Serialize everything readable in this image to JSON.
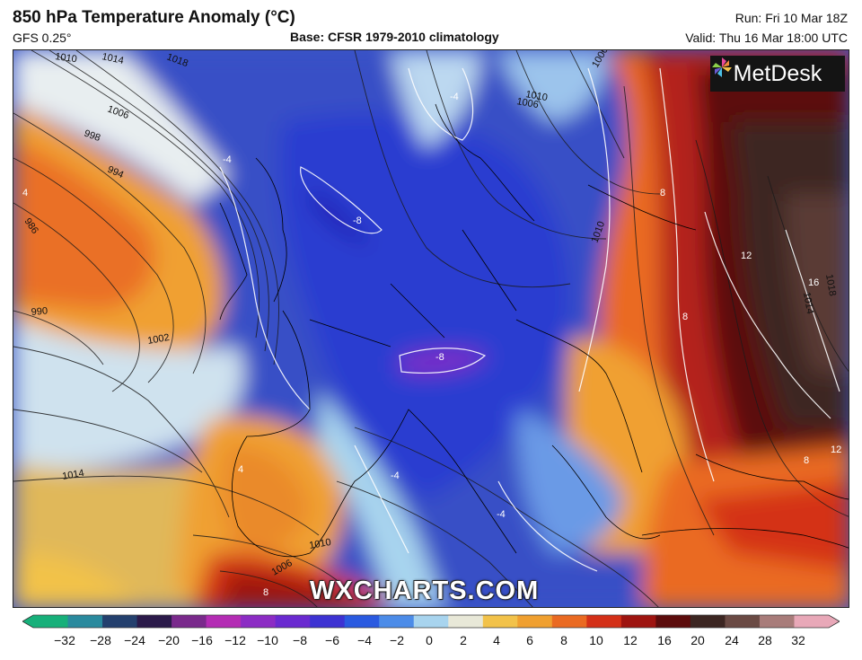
{
  "header": {
    "title": "850 hPa Temperature Anomaly (°C)",
    "model": "GFS 0.25°",
    "base": "Base: CFSR 1979-2010 climatology",
    "run": "Run: Fri 10 Mar 18Z",
    "valid": "Valid: Thu 16 Mar 18:00 UTC"
  },
  "brand": {
    "name": "MetDesk",
    "icon": "pinwheel-logo-icon"
  },
  "watermark": "WXCHARTS.COM",
  "map": {
    "isobar_labels": [
      "1010",
      "1014",
      "1018",
      "1006",
      "998",
      "994",
      "986",
      "990",
      "1002",
      "1014",
      "1010",
      "1006",
      "1018",
      "1014",
      "1006",
      "1010",
      "1006",
      "1010"
    ],
    "anomaly_labels": [
      "-4",
      "-4",
      "-8",
      "-8",
      "-4",
      "-4",
      "4",
      "8",
      "8",
      "12",
      "16",
      "12",
      "8",
      "4",
      "8"
    ]
  },
  "colorbar": {
    "ticks": [
      "−32",
      "−28",
      "−24",
      "−20",
      "−16",
      "−12",
      "−10",
      "−8",
      "−6",
      "−4",
      "−2",
      "0",
      "2",
      "4",
      "6",
      "8",
      "10",
      "12",
      "16",
      "20",
      "24",
      "28",
      "32"
    ],
    "colors": [
      "#17b07a",
      "#2a8a9e",
      "#24406e",
      "#2b1a4a",
      "#7a2a8c",
      "#b42cb4",
      "#8c2cc4",
      "#6a2ad0",
      "#3d32d2",
      "#2a5ae0",
      "#4c8ce8",
      "#a8d4ee",
      "#e8e8d8",
      "#f2c24a",
      "#f0a030",
      "#ea6a22",
      "#d43018",
      "#9e1410",
      "#5c0c0c",
      "#3c2622",
      "#6a4a44",
      "#a87c7a",
      "#e8a8b8"
    ]
  }
}
